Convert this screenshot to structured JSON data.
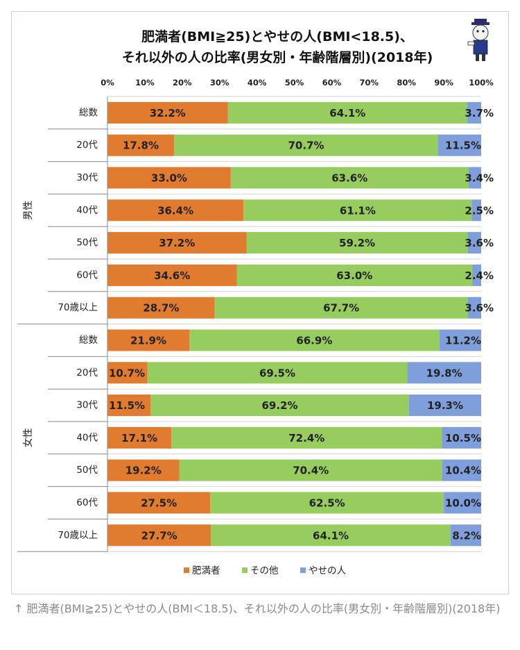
{
  "caption": "↑ 肥満者(BMI≧25)とやせの人(BMI＜18.5)、それ以外の人の比率(男女別・年齢階層別)(2018年)",
  "chart_data": {
    "type": "bar",
    "orientation": "horizontal",
    "stacked": "percent",
    "title_lines": [
      "肥満者(BMI≧25)とやせの人(BMI<18.5)、",
      "それ以外の人の比率(男女別・年齢階層別)(2018年)"
    ],
    "x_ticks": [
      "0%",
      "10%",
      "20%",
      "30%",
      "40%",
      "50%",
      "60%",
      "70%",
      "80%",
      "90%",
      "100%"
    ],
    "xlim": [
      0,
      100
    ],
    "grid": true,
    "legend_position": "bottom",
    "colors": {
      "obese": "#e07b2f",
      "other": "#97cc5e",
      "thin": "#7e9fdb"
    },
    "legend": [
      "肥満者",
      "その他",
      "やせの人"
    ],
    "groups": [
      {
        "name": "男性",
        "rows": [
          {
            "label": "総数",
            "values": [
              32.2,
              64.1,
              3.7
            ],
            "labels": [
              "32.2%",
              "64.1%",
              "3.7%"
            ]
          },
          {
            "label": "20代",
            "values": [
              17.8,
              70.7,
              11.5
            ],
            "labels": [
              "17.8%",
              "70.7%",
              "11.5%"
            ]
          },
          {
            "label": "30代",
            "values": [
              33.0,
              63.6,
              3.4
            ],
            "labels": [
              "33.0%",
              "63.6%",
              "3.4%"
            ]
          },
          {
            "label": "40代",
            "values": [
              36.4,
              61.1,
              2.5
            ],
            "labels": [
              "36.4%",
              "61.1%",
              "2.5%"
            ]
          },
          {
            "label": "50代",
            "values": [
              37.2,
              59.2,
              3.6
            ],
            "labels": [
              "37.2%",
              "59.2%",
              "3.6%"
            ]
          },
          {
            "label": "60代",
            "values": [
              34.6,
              63.0,
              2.4
            ],
            "labels": [
              "34.6%",
              "63.0%",
              "2.4%"
            ]
          },
          {
            "label": "70歳以上",
            "values": [
              28.7,
              67.7,
              3.6
            ],
            "labels": [
              "28.7%",
              "67.7%",
              "3.6%"
            ]
          }
        ]
      },
      {
        "name": "女性",
        "rows": [
          {
            "label": "総数",
            "values": [
              21.9,
              66.9,
              11.2
            ],
            "labels": [
              "21.9%",
              "66.9%",
              "11.2%"
            ]
          },
          {
            "label": "20代",
            "values": [
              10.7,
              69.5,
              19.8
            ],
            "labels": [
              "10.7%",
              "69.5%",
              "19.8%"
            ]
          },
          {
            "label": "30代",
            "values": [
              11.5,
              69.2,
              19.3
            ],
            "labels": [
              "11.5%",
              "69.2%",
              "19.3%"
            ]
          },
          {
            "label": "40代",
            "values": [
              17.1,
              72.4,
              10.5
            ],
            "labels": [
              "17.1%",
              "72.4%",
              "10.5%"
            ]
          },
          {
            "label": "50代",
            "values": [
              19.2,
              70.4,
              10.4
            ],
            "labels": [
              "19.2%",
              "70.4%",
              "10.4%"
            ]
          },
          {
            "label": "60代",
            "values": [
              27.5,
              62.5,
              10.0
            ],
            "labels": [
              "27.5%",
              "62.5%",
              "10.0%"
            ]
          },
          {
            "label": "70歳以上",
            "values": [
              27.7,
              64.1,
              8.2
            ],
            "labels": [
              "27.7%",
              "64.1%",
              "8.2%"
            ]
          }
        ]
      }
    ]
  }
}
